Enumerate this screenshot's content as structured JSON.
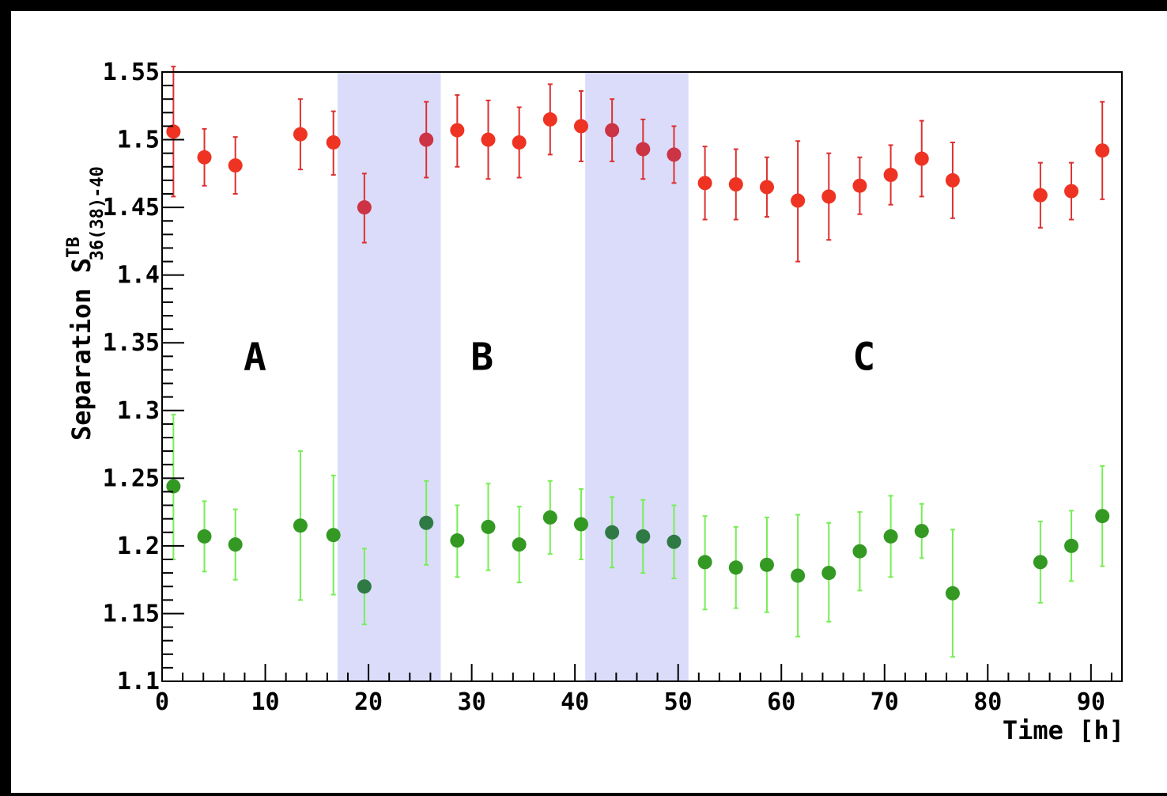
{
  "chart_data": {
    "type": "scatter",
    "xlabel": "Time [h]",
    "ylabel": "Separation S",
    "ylabel_sup": "TB",
    "ylabel_sub": "36(38)-40",
    "xlim": [
      0,
      93
    ],
    "ylim": [
      1.1,
      1.55
    ],
    "x_ticks": [
      "0",
      "10",
      "20",
      "30",
      "40",
      "50",
      "60",
      "70",
      "80",
      "90"
    ],
    "y_ticks": [
      "1.1",
      "1.15",
      "1.2",
      "1.25",
      "1.3",
      "1.35",
      "1.4",
      "1.45",
      "1.5",
      "1.55"
    ],
    "grid": false,
    "shaded_regions": [
      {
        "x_start": 17,
        "x_end": 27
      },
      {
        "x_start": 41,
        "x_end": 51
      }
    ],
    "shade_color": "#dadcfa",
    "region_labels": [
      {
        "text": "A",
        "x": 9,
        "y": 1.33
      },
      {
        "text": "B",
        "x": 31,
        "y": 1.33
      },
      {
        "text": "C",
        "x": 68,
        "y": 1.33
      }
    ],
    "series": [
      {
        "color": "#ee3322",
        "errcolor": "#dd3030",
        "x": [
          1.1,
          4.1,
          7.1,
          13.4,
          16.6,
          19.6,
          25.6,
          28.6,
          31.6,
          34.6,
          37.6,
          40.6,
          43.6,
          46.6,
          49.6,
          52.6,
          55.6,
          58.6,
          61.6,
          64.6,
          67.6,
          70.6,
          73.6,
          76.6,
          85.1,
          88.1,
          91.1
        ],
        "y": [
          1.506,
          1.487,
          1.481,
          1.504,
          1.498,
          1.45,
          1.5,
          1.507,
          1.5,
          1.498,
          1.515,
          1.51,
          1.507,
          1.493,
          1.489,
          1.468,
          1.467,
          1.465,
          1.455,
          1.458,
          1.466,
          1.474,
          1.486,
          1.47,
          1.459,
          1.462,
          1.492
        ],
        "yerr_low": [
          0.048,
          0.021,
          0.021,
          0.026,
          0.024,
          0.026,
          0.028,
          0.027,
          0.029,
          0.026,
          0.026,
          0.026,
          0.023,
          0.022,
          0.021,
          0.027,
          0.026,
          0.022,
          0.045,
          0.032,
          0.021,
          0.022,
          0.028,
          0.028,
          0.024,
          0.021,
          0.036
        ],
        "yerr_high": [
          0.048,
          0.021,
          0.021,
          0.026,
          0.023,
          0.025,
          0.028,
          0.026,
          0.029,
          0.026,
          0.026,
          0.026,
          0.023,
          0.022,
          0.021,
          0.027,
          0.026,
          0.022,
          0.044,
          0.032,
          0.021,
          0.022,
          0.028,
          0.028,
          0.024,
          0.021,
          0.036
        ]
      },
      {
        "color": "#339922",
        "errcolor": "#77ee55",
        "x": [
          1.1,
          4.1,
          7.1,
          13.4,
          16.6,
          19.6,
          25.6,
          28.6,
          31.6,
          34.6,
          37.6,
          40.6,
          43.6,
          46.6,
          49.6,
          52.6,
          55.6,
          58.6,
          61.6,
          64.6,
          67.6,
          70.6,
          73.6,
          76.6,
          85.1,
          88.1,
          91.1
        ],
        "y": [
          1.244,
          1.207,
          1.201,
          1.215,
          1.208,
          1.17,
          1.217,
          1.204,
          1.214,
          1.201,
          1.221,
          1.216,
          1.21,
          1.207,
          1.203,
          1.188,
          1.184,
          1.186,
          1.178,
          1.18,
          1.196,
          1.207,
          1.211,
          1.165,
          1.188,
          1.2,
          1.222
        ],
        "yerr_low": [
          0.054,
          0.026,
          0.026,
          0.055,
          0.044,
          0.028,
          0.031,
          0.027,
          0.032,
          0.028,
          0.027,
          0.026,
          0.026,
          0.027,
          0.027,
          0.035,
          0.03,
          0.035,
          0.045,
          0.036,
          0.029,
          0.03,
          0.02,
          0.047,
          0.03,
          0.026,
          0.037
        ],
        "yerr_high": [
          0.053,
          0.026,
          0.026,
          0.055,
          0.044,
          0.028,
          0.031,
          0.026,
          0.032,
          0.028,
          0.027,
          0.026,
          0.026,
          0.027,
          0.027,
          0.034,
          0.03,
          0.035,
          0.045,
          0.037,
          0.029,
          0.03,
          0.02,
          0.047,
          0.03,
          0.026,
          0.037
        ]
      }
    ]
  }
}
